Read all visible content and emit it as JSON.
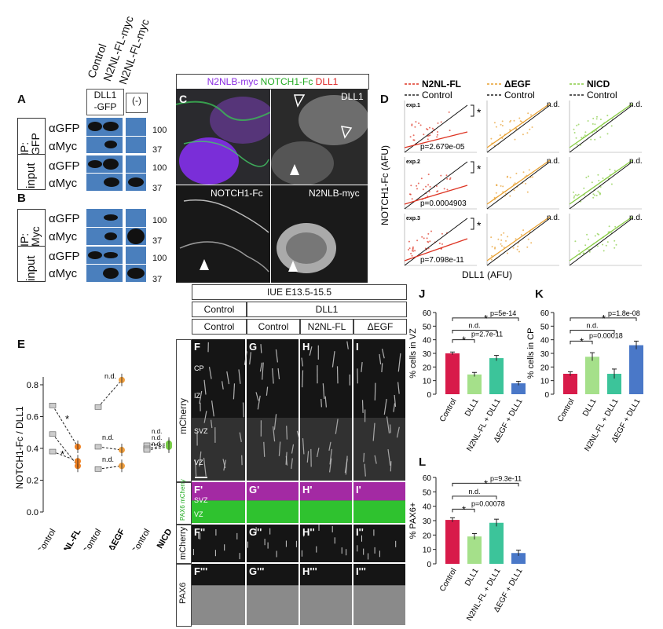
{
  "panels": {
    "A": "A",
    "B": "B",
    "C": "C",
    "D": "D",
    "E": "E",
    "F": "F",
    "G": "G",
    "H": "H",
    "I": "I",
    "J": "J",
    "K": "K",
    "L": "L"
  },
  "blot": {
    "lane_headers": [
      "Control",
      "N2NL-FL-myc",
      "N2NL-FL-myc"
    ],
    "transfection": [
      "DLL1\n-GFP",
      "(-)"
    ],
    "ip_gfp": "IP:\nGFP",
    "ip_myc": "IP:\nMyc",
    "input": "input",
    "antibodies": [
      "αGFP",
      "αMyc",
      "αGFP",
      "αMyc"
    ],
    "kda_top": [
      "100",
      "37",
      "100",
      "37"
    ],
    "kda_bottom": [
      "100",
      "37",
      "100",
      "37"
    ]
  },
  "microscopy_c": {
    "header_parts": [
      {
        "text": "N2NLB-myc ",
        "color": "#8a2be2"
      },
      {
        "text": "NOTCH1-Fc ",
        "color": "#22aa22"
      },
      {
        "text": "DLL1",
        "color": "#dd2222"
      }
    ],
    "labels": [
      "DLL1",
      "NOTCH1-Fc",
      "N2NLB-myc"
    ]
  },
  "chart_d": {
    "legends": [
      {
        "name": "N2NL-FL",
        "color": "#dd3322"
      },
      {
        "name": "ΔEGF",
        "color": "#e8a030"
      },
      {
        "name": "NICD",
        "color": "#88cc44"
      }
    ],
    "control_label": "Control",
    "ylabel": "NOTCH1-Fc (AFU)",
    "xlabel": "DLL1 (AFU)",
    "exp_labels": [
      "exp.1",
      "exp.2",
      "exp.3"
    ],
    "pvalues": [
      "p=2.679e-05",
      "p=0.0004903",
      "p=7.098e-11"
    ],
    "star": "*",
    "nd": "n.d."
  },
  "chart_e": {
    "ylabel": "NOTCH1-Fc / DLL1",
    "yticks": [
      "0.0",
      "0.2",
      "0.4",
      "0.6",
      "0.8"
    ],
    "groups": [
      {
        "control": "Control",
        "treat": "N2NL-FL"
      },
      {
        "control": "Control",
        "treat": "ΔEGF"
      },
      {
        "control": "Control",
        "treat": "NICD"
      }
    ],
    "star": "*",
    "nd": "n.d."
  },
  "chart_data": [
    {
      "type": "scatter",
      "title": "",
      "ylabel": "NOTCH1-Fc / DLL1",
      "ylim": [
        0,
        0.9
      ],
      "series": [
        {
          "name": "N2NL-FL",
          "pairs": [
            [
              0.67,
              0.41
            ],
            [
              0.49,
              0.29
            ],
            [
              0.38,
              0.32
            ]
          ]
        },
        {
          "name": "ΔEGF",
          "pairs": [
            [
              0.66,
              0.83
            ],
            [
              0.41,
              0.39
            ],
            [
              0.27,
              0.29
            ]
          ]
        },
        {
          "name": "NICD",
          "pairs": [
            [
              0.42,
              0.43
            ],
            [
              0.4,
              0.42
            ],
            [
              0.39,
              0.41
            ]
          ]
        }
      ]
    },
    {
      "type": "bar",
      "categories": [
        "Control",
        "DLL1",
        "N2NL-FL + DLL1",
        "ΔEGF + DLL1"
      ],
      "values": [
        30,
        14.5,
        26.5,
        8
      ],
      "errors": [
        1,
        1.5,
        2,
        1.5
      ],
      "colors": [
        "#d81b4a",
        "#a5e08a",
        "#3cc49a",
        "#4a78c8"
      ],
      "ylabel": "% cells in VZ",
      "ylim": [
        0,
        60
      ],
      "yticks": [
        "0",
        "10",
        "20",
        "30",
        "40",
        "50",
        "60"
      ],
      "annotations": [
        "p=2.7e-11",
        "p=5e-14",
        "n.d."
      ]
    },
    {
      "type": "bar",
      "categories": [
        "Control",
        "DLL1",
        "N2NL-FL + DLL1",
        "ΔEGF + DLL1"
      ],
      "values": [
        15,
        27.5,
        15,
        36
      ],
      "errors": [
        1.5,
        3,
        3.5,
        3
      ],
      "colors": [
        "#d81b4a",
        "#a5e08a",
        "#3cc49a",
        "#4a78c8"
      ],
      "ylabel": "% cells in CP",
      "ylim": [
        0,
        60
      ],
      "yticks": [
        "0",
        "10",
        "20",
        "30",
        "40",
        "50",
        "60"
      ],
      "annotations": [
        "p=0.00018",
        "p=1.8e-08",
        "n.d."
      ]
    },
    {
      "type": "bar",
      "categories": [
        "Control",
        "DLL1",
        "N2NL-FL + DLL1",
        "ΔEGF + DLL1"
      ],
      "values": [
        30.5,
        19,
        28.5,
        7.5
      ],
      "errors": [
        1.5,
        2,
        2.5,
        2
      ],
      "colors": [
        "#d81b4a",
        "#a5e08a",
        "#3cc49a",
        "#4a78c8"
      ],
      "ylabel": "% PAX6+",
      "ylim": [
        0,
        60
      ],
      "yticks": [
        "0",
        "10",
        "20",
        "30",
        "40",
        "50",
        "60"
      ],
      "annotations": [
        "p=0.00078",
        "p=9.3e-11",
        "n.d."
      ]
    }
  ],
  "iue": {
    "title": "IUE E13.5-15.5",
    "top_ctrl": "Control",
    "top_dll1": "DLL1",
    "cols": [
      "Control",
      "Control",
      "N2NL-FL",
      "ΔEGF"
    ],
    "row_labels": [
      "mCherry",
      "PAX6 mCherry",
      "mCherry",
      "PAX6"
    ],
    "layers": [
      "CP",
      "IZ",
      "SVZ",
      "VZ"
    ],
    "layers_fp": [
      "SVZ",
      "VZ"
    ],
    "tags": [
      [
        "F",
        "G",
        "H",
        "I"
      ],
      [
        "F'",
        "G'",
        "H'",
        "I'"
      ],
      [
        "F''",
        "G''",
        "H''",
        "I''"
      ],
      [
        "F'''",
        "G'''",
        "H'''",
        "I'''"
      ]
    ]
  }
}
